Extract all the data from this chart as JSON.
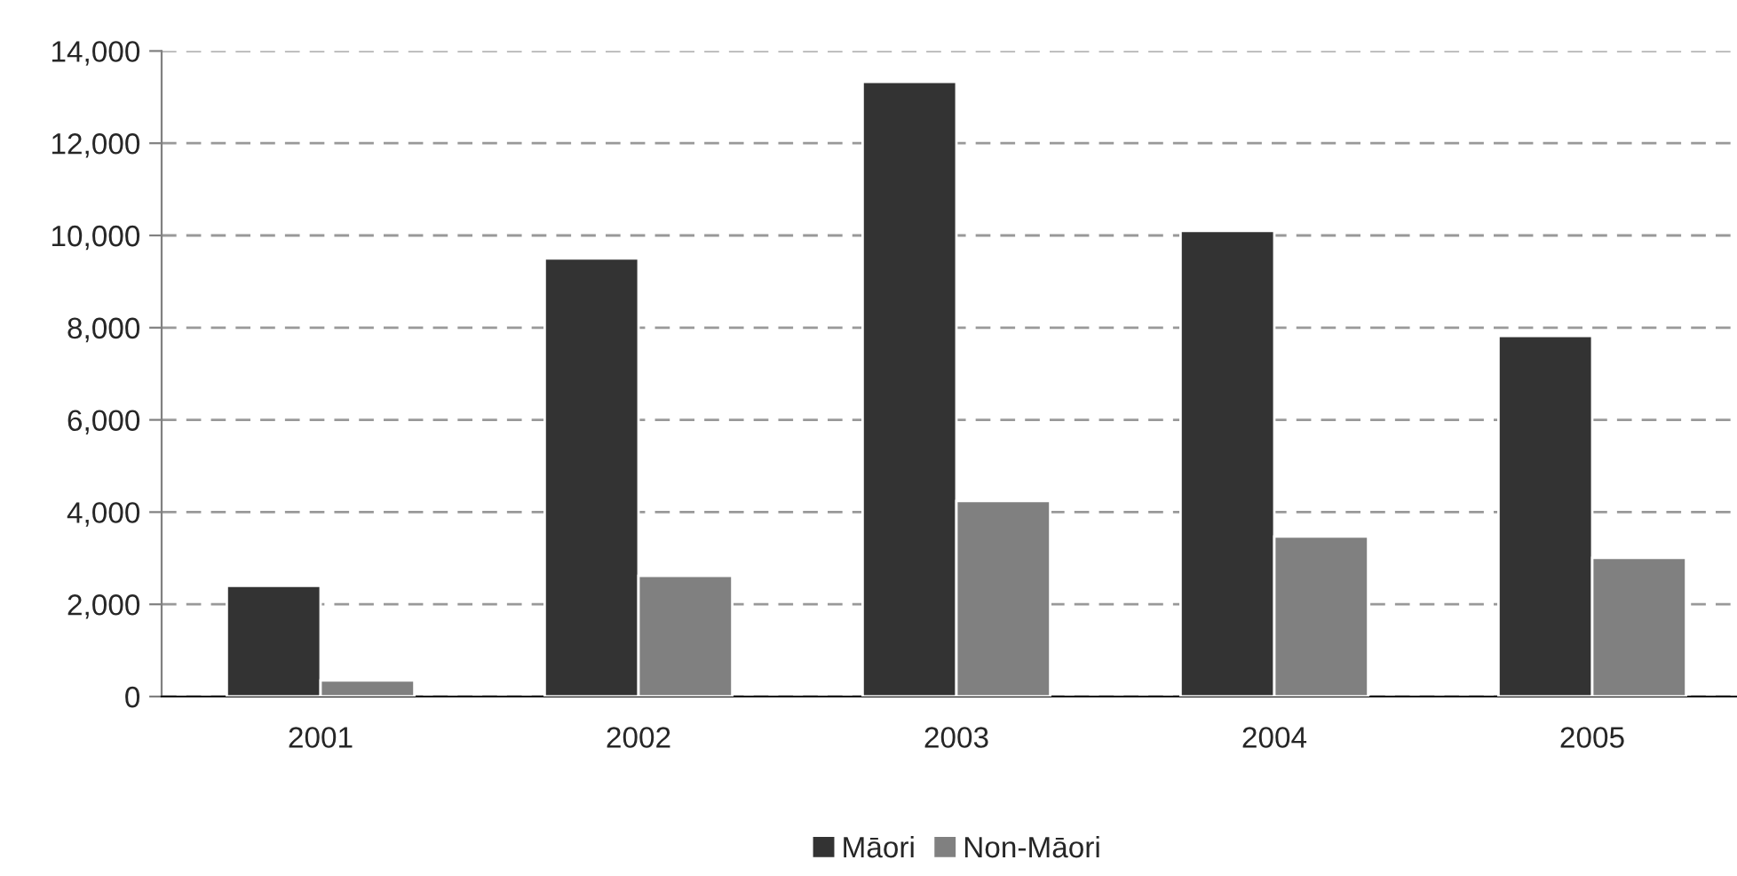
{
  "chart_data": {
    "type": "bar",
    "categories": [
      "2001",
      "2002",
      "2003",
      "2004",
      "2005"
    ],
    "series": [
      {
        "name": "Māori",
        "color": "#333333",
        "values": [
          2400,
          9500,
          13330,
          10100,
          7820
        ]
      },
      {
        "name": "Non-Māori",
        "color": "#808080",
        "values": [
          350,
          2620,
          4240,
          3470,
          3010
        ]
      }
    ],
    "ylim": [
      0,
      14000
    ],
    "yticks": [
      0,
      {
        "value": 2000,
        "label": "2,000"
      },
      {
        "value": 4000,
        "label": "4,000"
      },
      {
        "value": 6000,
        "label": "6,000"
      },
      {
        "value": 8000,
        "label": "8,000"
      },
      {
        "value": 10000,
        "label": "10,000"
      },
      {
        "value": 12000,
        "label": "12,000"
      },
      {
        "value": 14000,
        "label": "14,000"
      }
    ],
    "grid": "y",
    "line_style": "dashed",
    "legend": "bottom"
  }
}
